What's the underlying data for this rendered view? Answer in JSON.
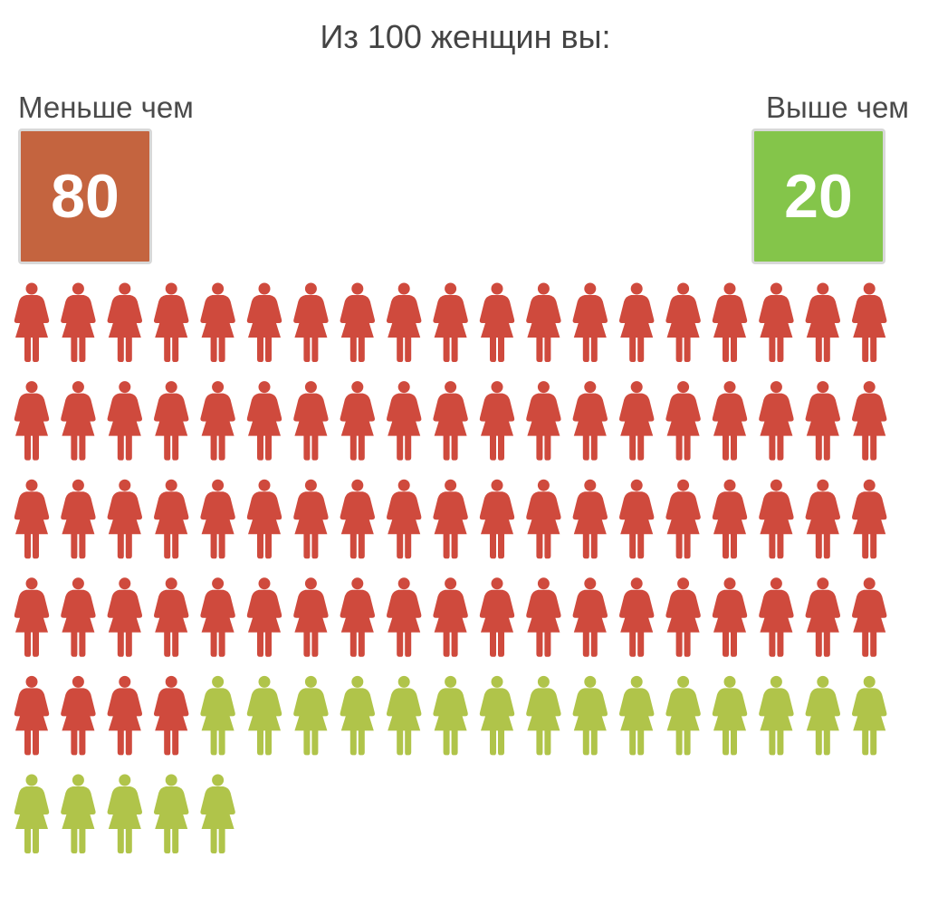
{
  "title": "Из 100 женщин вы:",
  "less": {
    "label": "Меньше чем",
    "value": "80",
    "box_color": "#c4643f"
  },
  "more": {
    "label": "Выше чем",
    "value": "20",
    "box_color": "#84c54a"
  },
  "icon": "woman-figure-icon",
  "chart_data": {
    "type": "pictogram",
    "total": 100,
    "series": [
      {
        "name": "Меньше чем",
        "value": 80,
        "color": "#cf4a3d"
      },
      {
        "name": "Выше чем",
        "value": 20,
        "color": "#b0c44a"
      }
    ]
  }
}
